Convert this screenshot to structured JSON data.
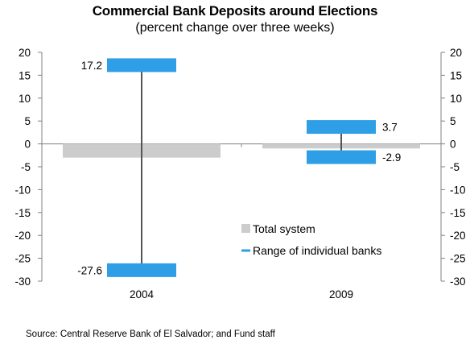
{
  "chart_data": {
    "type": "bar",
    "title": "Commercial Bank Deposits around Elections",
    "subtitle": "(percent change over three weeks)",
    "categories": [
      "2004",
      "2009"
    ],
    "ylim": [
      -30,
      20
    ],
    "yticks": [
      "20",
      "15",
      "10",
      "5",
      "0",
      "-5",
      "-10",
      "-15",
      "-20",
      "-25",
      "-30"
    ],
    "series": [
      {
        "name": "Total system",
        "kind": "bar",
        "color": "#cccccc",
        "values": [
          -3.0,
          -1.0
        ]
      },
      {
        "name": "Range of individual banks",
        "kind": "range",
        "color": "#2e9fe6",
        "high": [
          17.2,
          3.7
        ],
        "low": [
          -27.6,
          -2.9
        ],
        "high_labels": [
          "17.2",
          "3.7"
        ],
        "low_labels": [
          "-27.6",
          "-2.9"
        ]
      }
    ],
    "legend_position": "bottom-right",
    "grid": false
  },
  "source": "Source: Central Reserve Bank of El Salvador; and Fund staff"
}
